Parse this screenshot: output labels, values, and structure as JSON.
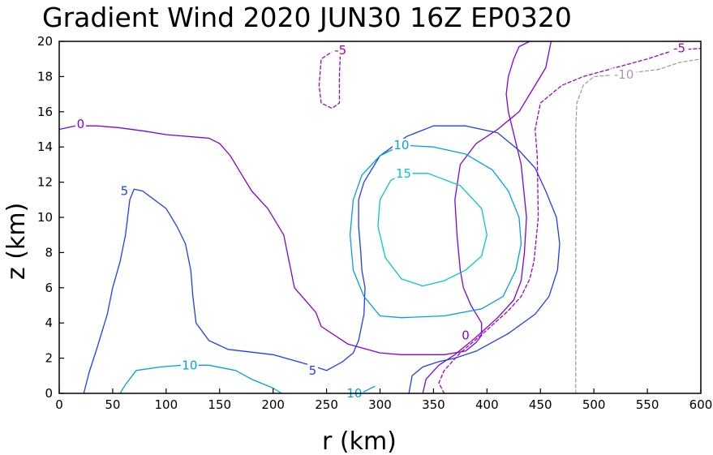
{
  "chart_data": {
    "type": "contour",
    "title": "Gradient Wind 2020 JUN30 16Z  EP0320",
    "xlabel": "r (km)",
    "ylabel": "z (km)",
    "xlim": [
      0,
      600
    ],
    "ylim": [
      0,
      20
    ],
    "xticks": [
      "0",
      "50",
      "100",
      "150",
      "200",
      "250",
      "300",
      "350",
      "400",
      "450",
      "500",
      "550",
      "600"
    ],
    "yticks": [
      "0",
      "2",
      "4",
      "6",
      "8",
      "10",
      "12",
      "14",
      "16",
      "18",
      "20"
    ],
    "contour_levels": [
      -10,
      -5,
      0,
      5,
      10,
      15
    ],
    "colors": {
      "-10": "#a0a0a0",
      "-5": "#a000c8",
      "0": "#8200dc",
      "5": "#1e3cff",
      "10": "#00a0e6",
      "15": "#00c8c8"
    },
    "contours": [
      {
        "level": 0,
        "style": "solid",
        "label": "0",
        "label_at": [
          20,
          15.3
        ],
        "points": [
          [
            0,
            15
          ],
          [
            15,
            15.2
          ],
          [
            35,
            15.2
          ],
          [
            55,
            15.1
          ],
          [
            80,
            14.9
          ],
          [
            100,
            14.7
          ],
          [
            140,
            14.5
          ],
          [
            150,
            14.2
          ],
          [
            160,
            13.5
          ],
          [
            170,
            12.5
          ],
          [
            180,
            11.5
          ],
          [
            195,
            10.5
          ],
          [
            210,
            9
          ],
          [
            215,
            7.5
          ],
          [
            220,
            6
          ],
          [
            240,
            4.6
          ],
          [
            245,
            3.8
          ],
          [
            270,
            2.8
          ],
          [
            300,
            2.3
          ],
          [
            320,
            2.2
          ],
          [
            360,
            2.2
          ],
          [
            380,
            2.4
          ],
          [
            390,
            2.9
          ],
          [
            395,
            3.3
          ],
          [
            395,
            4
          ],
          [
            385,
            5
          ],
          [
            378,
            6
          ],
          [
            375,
            7
          ],
          [
            372,
            9
          ],
          [
            370,
            11
          ],
          [
            375,
            13
          ],
          [
            390,
            14.2
          ],
          [
            410,
            15
          ],
          [
            430,
            16
          ],
          [
            440,
            17
          ],
          [
            455,
            18.5
          ],
          [
            460,
            20
          ]
        ]
      },
      {
        "level": 0,
        "style": "solid",
        "label": "0",
        "label_at": [
          380,
          3.3
        ],
        "points": [
          [
            340,
            0
          ],
          [
            343,
            0.8
          ],
          [
            355,
            1.6
          ],
          [
            370,
            2.2
          ],
          [
            390,
            3.2
          ],
          [
            410,
            4.3
          ],
          [
            425,
            5.3
          ],
          [
            432,
            6.4
          ],
          [
            435,
            8
          ],
          [
            437,
            10
          ],
          [
            432,
            13
          ],
          [
            424,
            15
          ],
          [
            420,
            16
          ],
          [
            418,
            17
          ],
          [
            420,
            18
          ],
          [
            425,
            19
          ],
          [
            430,
            19.7
          ],
          [
            440,
            20
          ]
        ]
      },
      {
        "level": 5,
        "style": "solid",
        "label": "5",
        "label_at": [
          61,
          11.5
        ],
        "points": [
          [
            23,
            0
          ],
          [
            28,
            1.2
          ],
          [
            35,
            2.5
          ],
          [
            40,
            3.5
          ],
          [
            45,
            4.5
          ],
          [
            50,
            6
          ],
          [
            57,
            7.5
          ],
          [
            62,
            9
          ],
          [
            66,
            11
          ],
          [
            70,
            11.6
          ],
          [
            78,
            11.5
          ],
          [
            100,
            10.5
          ],
          [
            110,
            9.5
          ],
          [
            118,
            8.5
          ],
          [
            123,
            7
          ],
          [
            125,
            5.5
          ],
          [
            128,
            4
          ],
          [
            140,
            3
          ],
          [
            158,
            2.5
          ],
          [
            200,
            2.2
          ],
          [
            235,
            1.6
          ],
          [
            250,
            1.3
          ]
        ]
      },
      {
        "level": 5,
        "style": "solid",
        "label": "5",
        "label_at": [
          237,
          1.3
        ],
        "points": [
          [
            250,
            1.3
          ],
          [
            265,
            1.8
          ],
          [
            275,
            2.3
          ],
          [
            280,
            3
          ],
          [
            285,
            4.5
          ],
          [
            286,
            6
          ],
          [
            283,
            7
          ],
          [
            282,
            8
          ],
          [
            280,
            9.5
          ],
          [
            280,
            11
          ],
          [
            285,
            12
          ],
          [
            300,
            13.5
          ],
          [
            325,
            14.6
          ],
          [
            350,
            15.2
          ],
          [
            380,
            15.2
          ],
          [
            410,
            14.8
          ],
          [
            430,
            13.8
          ],
          [
            445,
            12.8
          ],
          [
            455,
            11.5
          ],
          [
            465,
            10
          ],
          [
            468,
            8.5
          ],
          [
            466,
            7
          ],
          [
            458,
            5.5
          ],
          [
            445,
            4.5
          ],
          [
            420,
            3.4
          ],
          [
            390,
            2.4
          ],
          [
            370,
            2
          ],
          [
            355,
            1.8
          ],
          [
            340,
            1.5
          ],
          [
            330,
            1
          ],
          [
            327,
            0
          ]
        ]
      },
      {
        "level": 10,
        "style": "solid",
        "label": "10",
        "label_at": [
          122,
          1.6
        ],
        "points": [
          [
            57,
            0
          ],
          [
            62,
            0.5
          ],
          [
            72,
            1.3
          ],
          [
            95,
            1.5
          ],
          [
            115,
            1.6
          ],
          [
            140,
            1.6
          ],
          [
            165,
            1.3
          ],
          [
            180,
            0.8
          ],
          [
            200,
            0.3
          ],
          [
            208,
            0
          ]
        ]
      },
      {
        "level": 10,
        "style": "solid",
        "label": "10",
        "label_at": [
          276,
          0
        ],
        "points": [
          [
            282,
            0
          ],
          [
            295,
            0.4
          ]
        ]
      },
      {
        "level": 10,
        "style": "solid",
        "label": "10",
        "label_at": [
          320,
          14.1
        ],
        "points": [
          [
            320,
            14.1
          ],
          [
            350,
            14
          ],
          [
            380,
            13.6
          ],
          [
            405,
            12.7
          ],
          [
            420,
            11.5
          ],
          [
            430,
            10
          ],
          [
            432,
            8.5
          ],
          [
            427,
            7
          ],
          [
            415,
            5.5
          ],
          [
            395,
            4.8
          ],
          [
            360,
            4.4
          ],
          [
            320,
            4.3
          ],
          [
            300,
            4.4
          ],
          [
            285,
            5.5
          ],
          [
            275,
            7
          ],
          [
            272,
            9
          ],
          [
            275,
            11
          ],
          [
            283,
            12.4
          ],
          [
            300,
            13.5
          ],
          [
            320,
            14.1
          ]
        ]
      },
      {
        "level": 15,
        "style": "solid",
        "label": "15",
        "label_at": [
          322,
          12.5
        ],
        "points": [
          [
            322,
            12.5
          ],
          [
            345,
            12.5
          ],
          [
            375,
            11.8
          ],
          [
            395,
            10.5
          ],
          [
            400,
            9
          ],
          [
            395,
            7.8
          ],
          [
            380,
            7
          ],
          [
            360,
            6.4
          ],
          [
            340,
            6.1
          ],
          [
            320,
            6.5
          ],
          [
            305,
            7.7
          ],
          [
            298,
            9.5
          ],
          [
            300,
            11
          ],
          [
            310,
            12.1
          ],
          [
            322,
            12.5
          ]
        ]
      },
      {
        "level": -5,
        "style": "dashed",
        "label": "-5",
        "label_at": [
          263,
          19.5
        ],
        "points": [
          [
            263,
            19.5
          ],
          [
            255,
            19.4
          ],
          [
            245,
            19
          ],
          [
            243,
            17.5
          ],
          [
            245,
            16.5
          ],
          [
            255,
            16.2
          ],
          [
            262,
            16.5
          ],
          [
            262,
            18
          ],
          [
            263,
            19.5
          ]
        ]
      },
      {
        "level": -5,
        "style": "dashed",
        "label": "-5",
        "label_at": [
          580,
          19.6
        ],
        "points": [
          [
            360,
            0
          ],
          [
            355,
            0.6
          ],
          [
            360,
            1.3
          ],
          [
            375,
            2.3
          ],
          [
            400,
            3.6
          ],
          [
            420,
            4.7
          ],
          [
            432,
            5.5
          ],
          [
            440,
            6.5
          ],
          [
            444,
            7.5
          ],
          [
            448,
            10
          ],
          [
            447,
            13.5
          ],
          [
            445,
            15
          ],
          [
            450,
            16.5
          ],
          [
            470,
            17.5
          ],
          [
            490,
            18
          ],
          [
            520,
            18.5
          ],
          [
            550,
            19
          ],
          [
            575,
            19.5
          ],
          [
            600,
            19.6
          ]
        ]
      },
      {
        "level": -10,
        "style": "dashed",
        "label": "-10",
        "label_at": [
          528,
          18.1
        ],
        "points": [
          [
            483,
            0
          ],
          [
            483,
            5
          ],
          [
            483,
            10
          ],
          [
            483,
            15
          ],
          [
            484,
            16.5
          ],
          [
            490,
            17.5
          ],
          [
            500,
            18
          ],
          [
            520,
            18.1
          ],
          [
            560,
            18.4
          ],
          [
            580,
            18.8
          ],
          [
            600,
            19
          ]
        ]
      }
    ]
  }
}
